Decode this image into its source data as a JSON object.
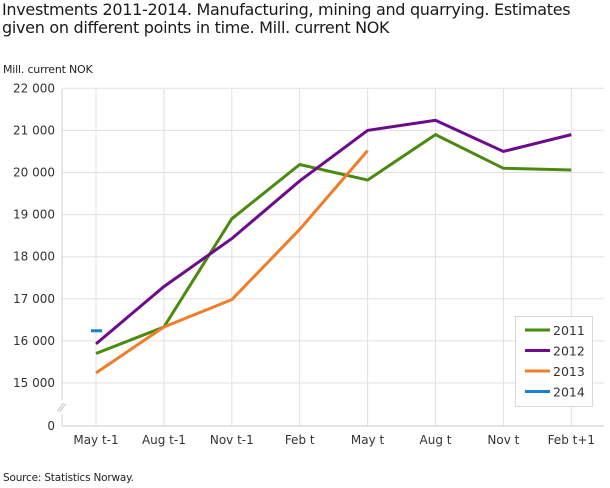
{
  "chart_data": {
    "type": "line",
    "title": "Investments 2011-2014. Manufacturing, mining and quarrying. Estimates given on different points in time. Mill. current NOK",
    "ylabel": "Mill. current NOK",
    "xlabel": "",
    "source": "Source: Statistics Norway.",
    "categories": [
      "May t-1",
      "Aug t-1",
      "Nov t-1",
      "Feb t",
      "May t",
      "Aug t",
      "Nov t",
      "Feb t+1"
    ],
    "yticks": [
      0,
      15000,
      16000,
      17000,
      18000,
      19000,
      20000,
      21000,
      22000
    ],
    "ytick_labels": [
      "0",
      "15 000",
      "16 000",
      "17 000",
      "18 000",
      "19 000",
      "20 000",
      "21 000",
      "22 000"
    ],
    "ylim": [
      0,
      22000
    ],
    "axis_break": true,
    "grid": true,
    "legend_position": "bottom-right inside",
    "series": [
      {
        "name": "2011",
        "color": "#4a8a0e",
        "values": [
          15700,
          16330,
          18900,
          20190,
          19820,
          20900,
          20100,
          20060
        ]
      },
      {
        "name": "2012",
        "color": "#6e0b8c",
        "values": [
          15930,
          17290,
          18430,
          19800,
          21000,
          21240,
          20500,
          20900
        ]
      },
      {
        "name": "2013",
        "color": "#f07d2a",
        "values": [
          15240,
          16330,
          16980,
          18650,
          20520,
          null,
          null,
          null
        ]
      },
      {
        "name": "2014",
        "color": "#1a7fd6",
        "values": [
          16240,
          null,
          null,
          null,
          null,
          null,
          null,
          null
        ]
      }
    ]
  }
}
